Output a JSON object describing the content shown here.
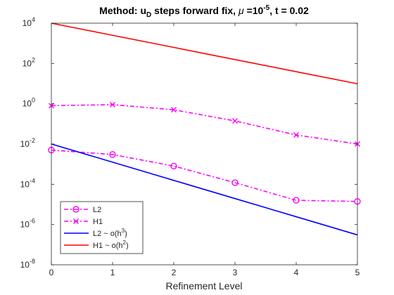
{
  "chart_data": {
    "type": "line",
    "title": "Method: u_D steps forward fix, μ =10^-5, t = 0.02",
    "title_parts": {
      "prefix": "Method: u",
      "sub": "D",
      "middle": " steps forward fix, ",
      "mu": "μ",
      "eq": " =10",
      "exp": "-5",
      "suffix": ", t = 0.02"
    },
    "xlabel": "Refinement Level",
    "ylabel": "",
    "y_scale": "log",
    "xlim": [
      0,
      5
    ],
    "ylim": [
      1e-08,
      10000.0
    ],
    "xticks": [
      0,
      1,
      2,
      3,
      4,
      5
    ],
    "yticks": [
      {
        "value": 1e-08,
        "base": "10",
        "exp": "-8"
      },
      {
        "value": 1e-06,
        "base": "10",
        "exp": "-6"
      },
      {
        "value": 0.0001,
        "base": "10",
        "exp": "-4"
      },
      {
        "value": 0.01,
        "base": "10",
        "exp": "-2"
      },
      {
        "value": 1.0,
        "base": "10",
        "exp": "0"
      },
      {
        "value": 100.0,
        "base": "10",
        "exp": "2"
      },
      {
        "value": 10000.0,
        "base": "10",
        "exp": "4"
      }
    ],
    "grid": false,
    "legend_position": "bottom-left",
    "x": [
      0,
      1,
      2,
      3,
      4,
      5
    ],
    "series": [
      {
        "name": "L2",
        "legend_parts": [
          "L2",
          "",
          ""
        ],
        "color": "#ff00ff",
        "dash": "dashdot",
        "marker": "circle",
        "values": [
          0.005,
          0.003,
          0.0008,
          0.00012,
          1.6e-05,
          1.4e-05
        ]
      },
      {
        "name": "H1",
        "legend_parts": [
          "H1",
          "",
          ""
        ],
        "color": "#ff00ff",
        "dash": "dashdot",
        "marker": "x",
        "values": [
          0.8,
          0.9,
          0.5,
          0.14,
          0.028,
          0.01
        ]
      },
      {
        "name": "L2 ~ o(h^3)",
        "legend_parts": [
          "L2 ~ o(h",
          "3",
          ")"
        ],
        "color": "#0000ff",
        "dash": "solid",
        "marker": "none",
        "values": [
          0.01,
          0.00125,
          0.000156,
          1.95e-05,
          2.44e-06,
          3.05e-07
        ]
      },
      {
        "name": "H1 ~ o(h^2)",
        "legend_parts": [
          "H1 ~ o(h",
          "2",
          ")"
        ],
        "color": "#ff0000",
        "dash": "solid",
        "marker": "none",
        "values": [
          10000,
          2500,
          625,
          156,
          39,
          9.8
        ]
      }
    ]
  }
}
